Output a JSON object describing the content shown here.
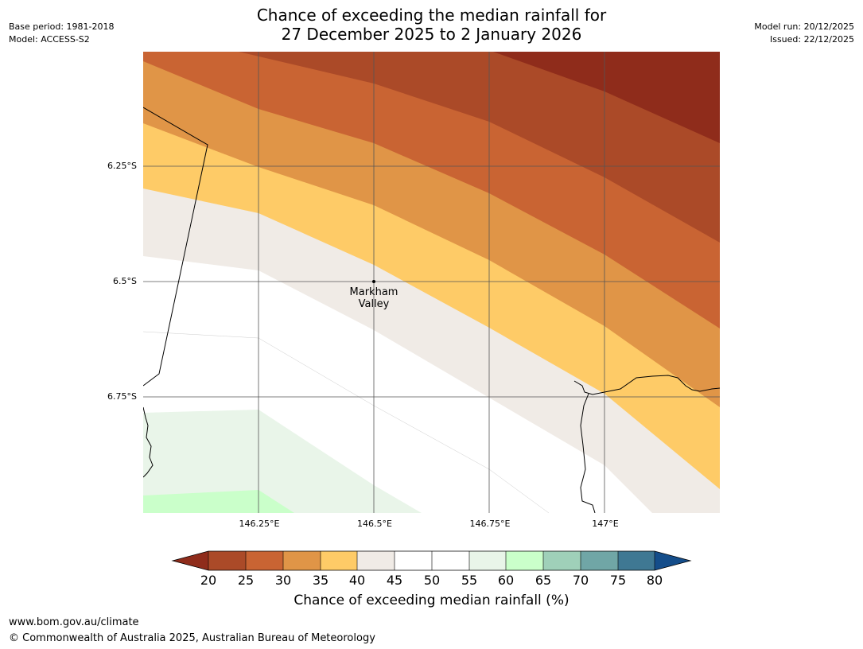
{
  "title": {
    "line1": "Chance of exceeding the median rainfall for",
    "line2": "27 December 2025 to 2 January 2026"
  },
  "meta_left": {
    "base_period": "Base period: 1981-2018",
    "model": "Model: ACCESS-S2"
  },
  "meta_right": {
    "model_run": "Model run: 20/12/2025",
    "issued": "Issued: 22/12/2025"
  },
  "map": {
    "lat_labels": [
      "6.25°S",
      "6.5°S",
      "6.75°S"
    ],
    "lon_labels": [
      "146.25°E",
      "146.5°E",
      "146.75°E",
      "147°E"
    ],
    "place": {
      "name_line1": "Markham",
      "name_line2": "Valley"
    }
  },
  "colorbar": {
    "ticks": [
      "20",
      "25",
      "30",
      "35",
      "40",
      "45",
      "50",
      "55",
      "60",
      "65",
      "70",
      "75",
      "80"
    ],
    "colors": {
      "under": "#8f2c1b",
      "20_25": "#ab4a28",
      "25_30": "#c96433",
      "30_35": "#e09547",
      "35_40": "#fecb67",
      "40_45": "#f0ebe6",
      "45_50": "#ffffff",
      "50_55": "#ffffff",
      "55_60": "#e9f5e9",
      "60_65": "#caffca",
      "65_70": "#9fd0b9",
      "70_75": "#70a6a6",
      "75_80": "#3f7893",
      "over": "#144d8a"
    },
    "label": "Chance of exceeding median rainfall (%)"
  },
  "footer": {
    "url": "www.bom.gov.au/climate",
    "copyright": "© Commonwealth of Australia 2025, Australian Bureau of Meteorology"
  }
}
